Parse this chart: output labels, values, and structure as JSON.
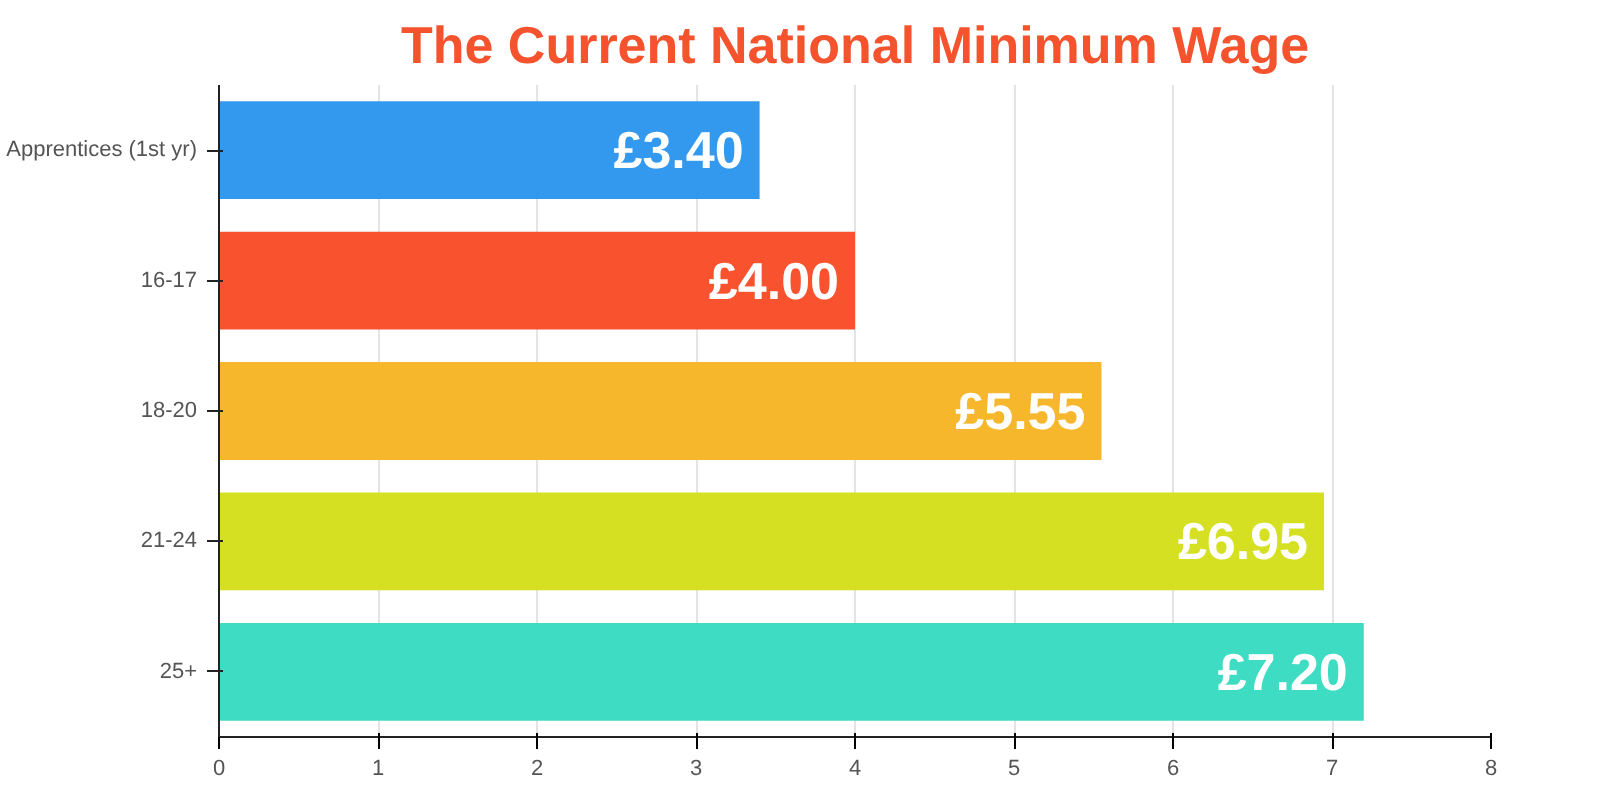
{
  "chart_data": {
    "type": "bar",
    "orientation": "horizontal",
    "title": "The Current National Minimum Wage",
    "categories": [
      "Apprentices (1st yr)",
      "16-17",
      "18-20",
      "21-24",
      "25+"
    ],
    "values": [
      3.4,
      4.0,
      5.55,
      6.95,
      7.2
    ],
    "colors": [
      "#3399ee",
      "#f8532e",
      "#f7b72c",
      "#d4e021",
      "#3ddcc3"
    ],
    "value_labels": [
      "£3.40",
      "£4.00",
      "£5.55",
      "£6.95",
      "£7.20"
    ],
    "xlim": [
      0,
      8
    ],
    "xticks": [
      0,
      1,
      2,
      3,
      4,
      5,
      6,
      7,
      8
    ],
    "grid": "x"
  }
}
